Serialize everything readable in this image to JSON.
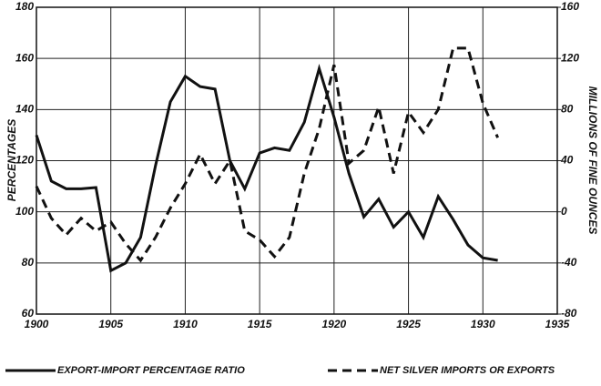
{
  "chart_data": {
    "type": "line",
    "x": [
      1900,
      1901,
      1902,
      1903,
      1904,
      1905,
      1906,
      1907,
      1908,
      1909,
      1910,
      1911,
      1912,
      1913,
      1914,
      1915,
      1916,
      1917,
      1918,
      1919,
      1920,
      1921,
      1922,
      1923,
      1924,
      1925,
      1926,
      1927,
      1928,
      1929,
      1930,
      1931
    ],
    "y_label": "PERCENTAGES",
    "y2_label": "MILLIONS OF FINE OUNCES",
    "xlim": [
      1900,
      1935
    ],
    "xticks": [
      1900,
      1905,
      1910,
      1915,
      1920,
      1925,
      1930,
      1935
    ],
    "ylim": [
      60,
      180
    ],
    "yticks": [
      60,
      80,
      100,
      120,
      140,
      160,
      180
    ],
    "y2lim": [
      -80,
      160
    ],
    "y2ticks": [
      -80,
      -40,
      0,
      40,
      80,
      120,
      160
    ],
    "grid": true,
    "series": [
      {
        "name": "EXPORT-IMPORT PERCENTAGE RATIO",
        "color": "#111111",
        "line_style": "solid",
        "values": [
          130,
          112,
          109,
          109,
          109.5,
          77,
          80,
          90,
          118,
          143,
          153,
          149,
          148,
          120,
          109,
          123,
          125,
          124,
          135,
          156,
          137,
          115,
          98,
          105,
          94,
          100,
          90,
          106,
          97,
          87,
          82,
          81
        ]
      },
      {
        "name": "NET SILVER IMPORTS OR EXPORTS",
        "color": "#111111",
        "line_style": "dashed",
        "axis": "y2",
        "values": [
          20,
          -5,
          -18,
          -5,
          -15,
          -8,
          -25,
          -38,
          -20,
          3,
          22,
          45,
          22,
          40,
          -15,
          -22,
          -35,
          -20,
          30,
          65,
          115,
          38,
          48,
          82,
          30,
          78,
          62,
          80,
          128,
          128,
          85,
          58
        ]
      }
    ]
  }
}
